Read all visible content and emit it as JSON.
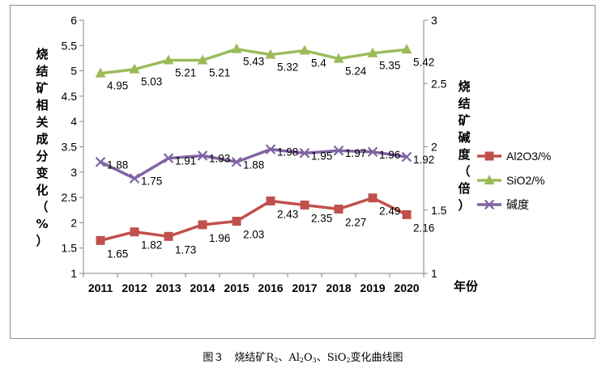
{
  "chart_data": {
    "type": "line",
    "categories": [
      "2011",
      "2012",
      "2013",
      "2014",
      "2015",
      "2016",
      "2017",
      "2018",
      "2019",
      "2020"
    ],
    "y_left": {
      "label": "烧结矿相关成分变化（%）",
      "ylim": [
        1,
        6
      ],
      "ticks": [
        "1",
        "1.5",
        "2",
        "2.5",
        "3",
        "3.5",
        "4",
        "4.5",
        "5",
        "5.5",
        "6"
      ]
    },
    "y_right": {
      "label": "烧结矿碱度（倍）",
      "ylim": [
        1,
        3
      ],
      "ticks": [
        "1",
        "1.5",
        "2",
        "2.5",
        "3"
      ]
    },
    "xlabel": "年份",
    "series": [
      {
        "name": "Al2O3/%",
        "axis": "left",
        "color": "#c0504d",
        "marker": "square",
        "values": [
          1.65,
          1.82,
          1.73,
          1.96,
          2.03,
          2.43,
          2.35,
          2.27,
          2.49,
          2.16
        ],
        "labels": [
          "1.65",
          "1.82",
          "1.73",
          "1.96",
          "2.03",
          "2.43",
          "2.35",
          "2.27",
          "2.49",
          "2.16"
        ]
      },
      {
        "name": "SiO2/%",
        "axis": "left",
        "color": "#9bbb59",
        "marker": "triangle",
        "values": [
          4.95,
          5.03,
          5.21,
          5.21,
          5.43,
          5.32,
          5.4,
          5.24,
          5.35,
          5.42
        ],
        "labels": [
          "4.95",
          "5.03",
          "5.21",
          "5.21",
          "5.43",
          "5.32",
          "5.4",
          "5.24",
          "5.35",
          "5.42"
        ]
      },
      {
        "name": "碱度",
        "axis": "right",
        "color": "#8064a2",
        "marker": "x",
        "values": [
          1.88,
          1.75,
          1.91,
          1.93,
          1.88,
          1.98,
          1.95,
          1.97,
          1.96,
          1.92
        ],
        "labels": [
          "1.88",
          "1.75",
          "1.91",
          "1.93",
          "1.88",
          "1.98",
          "1.95",
          "1.97",
          "1.96",
          "1.92"
        ]
      }
    ]
  },
  "caption": {
    "prefix": "图３　烧结矿R",
    "sub1": "2",
    "mid1": "、Al",
    "sub2": "2",
    "mid2": "O",
    "sub3": "3",
    "mid3": "、SiO",
    "sub4": "2",
    "suffix": "变化曲线图"
  }
}
